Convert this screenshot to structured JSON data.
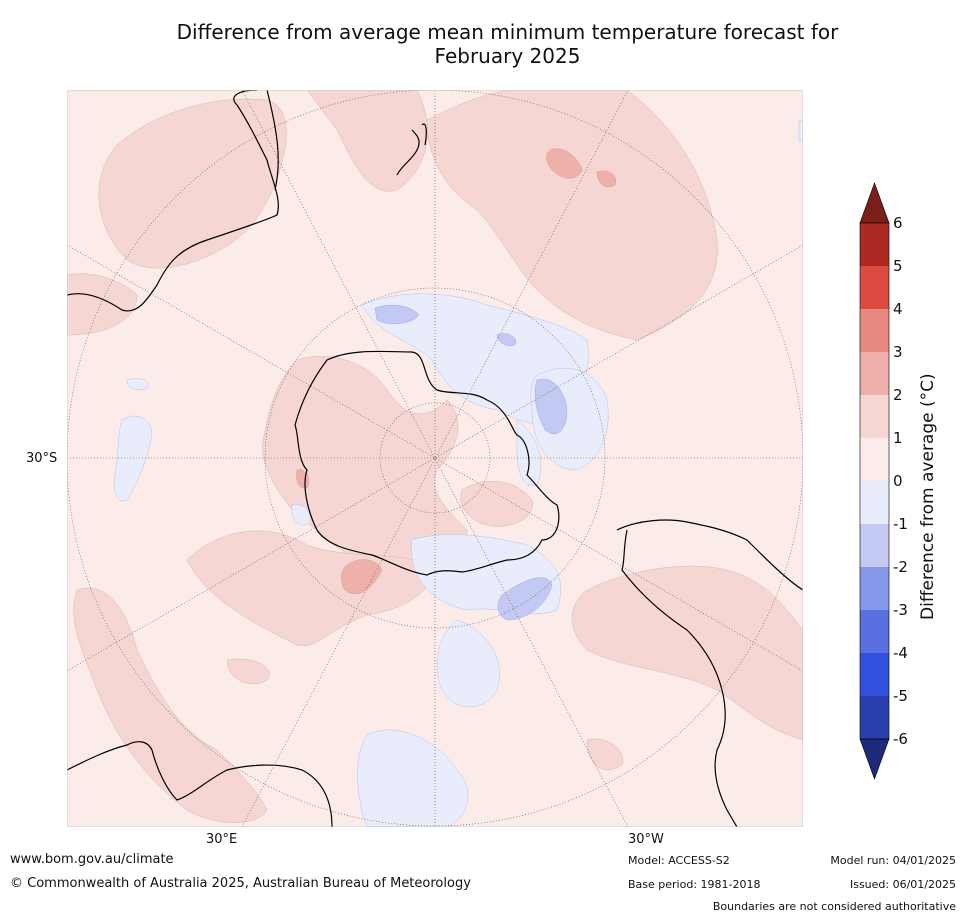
{
  "title": {
    "line1": "Difference from average mean minimum temperature forecast for",
    "line2": "February 2025"
  },
  "map": {
    "projection": "south-polar-stereographic",
    "lat_label": "30°S",
    "lon_labels": [
      "30°E",
      "30°W"
    ]
  },
  "colorbar": {
    "label": "Difference from average ($^\\circ$C)",
    "label_display": "Difference from average (°C)",
    "ticks": [
      "6",
      "5",
      "4",
      "3",
      "2",
      "1",
      "0",
      "-1",
      "-2",
      "-3",
      "-4",
      "-5",
      "-6"
    ],
    "bins": [
      {
        "range": "5 to 6",
        "color": "#ad2a24"
      },
      {
        "range": "4 to 5",
        "color": "#dc4b3f"
      },
      {
        "range": "3 to 4",
        "color": "#e98a82"
      },
      {
        "range": "2 to 3",
        "color": "#eeb0aa"
      },
      {
        "range": "1 to 2",
        "color": "#f5d6d3"
      },
      {
        "range": "0 to 1",
        "color": "#fbecea"
      },
      {
        "range": "-1 to 0",
        "color": "#e9ecfa"
      },
      {
        "range": "-2 to -1",
        "color": "#c3c9f3"
      },
      {
        "range": "-3 to -2",
        "color": "#8797ea"
      },
      {
        "range": "-4 to -3",
        "color": "#5a70e0"
      },
      {
        "range": "-5 to -4",
        "color": "#3150de"
      },
      {
        "range": "-6 to -5",
        "color": "#2a3fae"
      }
    ],
    "over_color": "#7a1f19",
    "under_color": "#1e2b7c"
  },
  "footer": {
    "url": "www.bom.gov.au/climate",
    "copyright": "© Commonwealth of Australia 2025, Australian Bureau of Meteorology",
    "model": "Model: ACCESS-S2",
    "base_period": "Base period: 1981-2018",
    "model_run": "Model run: 04/01/2025",
    "issued": "Issued: 06/01/2025",
    "disclaimer": "Boundaries are not considered authoritative"
  }
}
